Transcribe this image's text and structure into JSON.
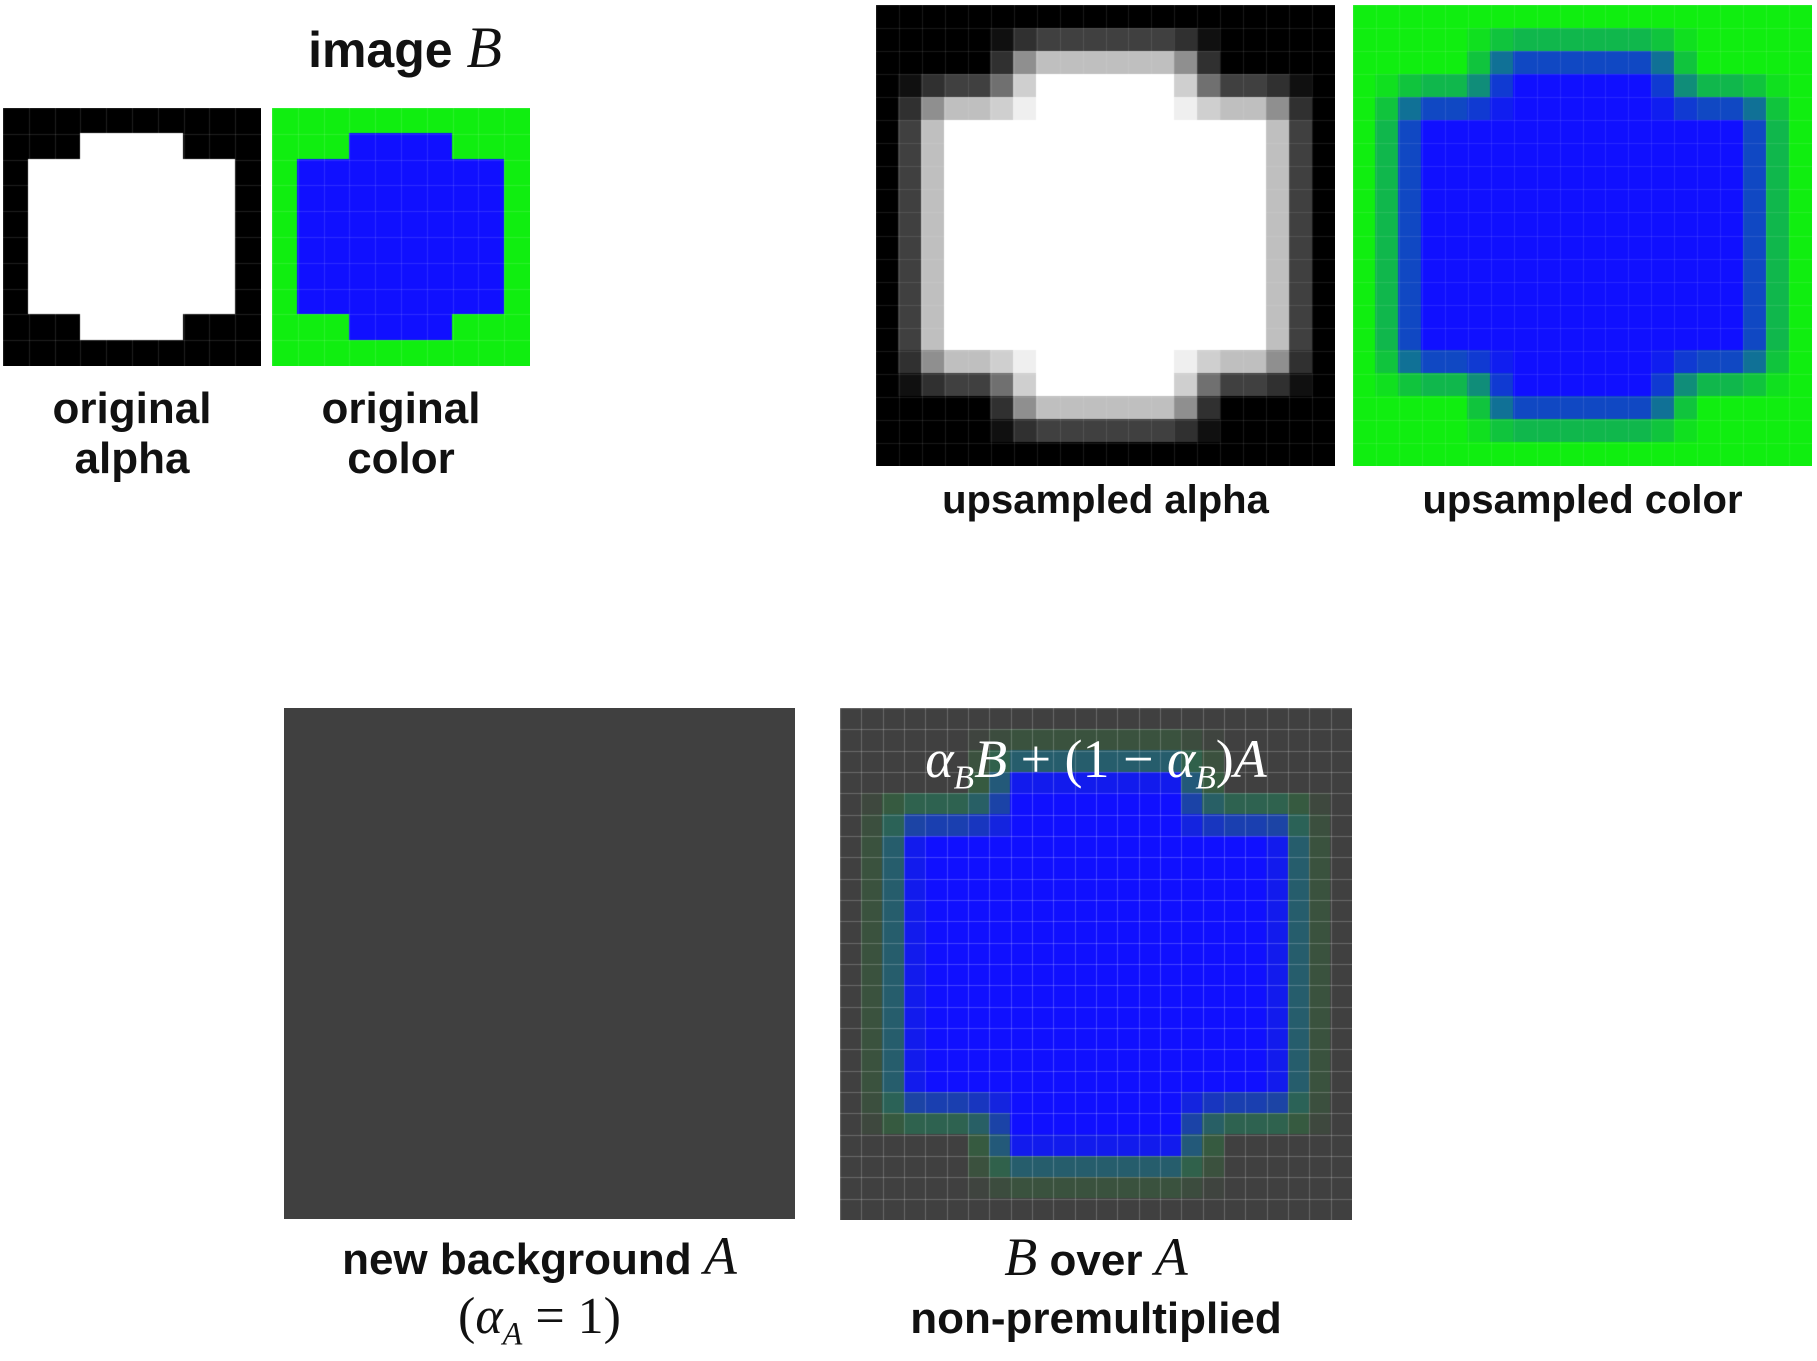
{
  "header": {
    "image_word": "image",
    "image_var": "B"
  },
  "labels": {
    "original_alpha_line1": "original",
    "original_alpha_line2": "alpha",
    "original_color_line1": "original",
    "original_color_line2": "color",
    "upsampled_alpha": "upsampled alpha",
    "upsampled_color": "upsampled color",
    "background_text": "new background",
    "background_var": "A",
    "background_alpha_open": "(",
    "background_alpha_sym": "α",
    "background_alpha_sub": "A",
    "background_alpha_eq": " = 1)",
    "result_var_b": "B",
    "result_over": "over",
    "result_var_a": "A",
    "result_line2": "non-premultiplied"
  },
  "formula": {
    "a1": "α",
    "s1": "B",
    "b": "B",
    "mid": " + (1 − ",
    "a2": "α",
    "s2": "B",
    "end": ")",
    "a": "A"
  },
  "colors": {
    "background_gray": "#404040",
    "foreground_blue": "#1010ff",
    "original_green": "#10ee10",
    "alpha_white": "#ffffff",
    "alpha_black": "#000000"
  }
}
